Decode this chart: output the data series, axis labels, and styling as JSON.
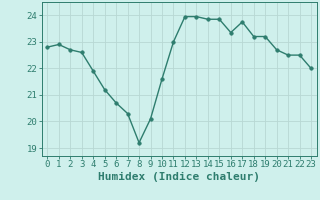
{
  "x": [
    0,
    1,
    2,
    3,
    4,
    5,
    6,
    7,
    8,
    9,
    10,
    11,
    12,
    13,
    14,
    15,
    16,
    17,
    18,
    19,
    20,
    21,
    22,
    23
  ],
  "y": [
    22.8,
    22.9,
    22.7,
    22.6,
    21.9,
    21.2,
    20.7,
    20.3,
    19.2,
    20.1,
    21.6,
    23.0,
    23.95,
    23.95,
    23.85,
    23.85,
    23.35,
    23.75,
    23.2,
    23.2,
    22.7,
    22.5,
    22.5,
    22.0
  ],
  "line_color": "#2e7d6e",
  "marker": "o",
  "marker_size": 2.5,
  "bg_color": "#cff0ec",
  "grid_color_major": "#b8d8d4",
  "grid_color_minor": "#b8d8d4",
  "xlabel": "Humidex (Indice chaleur)",
  "ylim": [
    18.7,
    24.5
  ],
  "xlim": [
    -0.5,
    23.5
  ],
  "yticks": [
    19,
    20,
    21,
    22,
    23,
    24
  ],
  "xticks": [
    0,
    1,
    2,
    3,
    4,
    5,
    6,
    7,
    8,
    9,
    10,
    11,
    12,
    13,
    14,
    15,
    16,
    17,
    18,
    19,
    20,
    21,
    22,
    23
  ],
  "tick_label_fontsize": 6.5,
  "xlabel_fontsize": 8,
  "axis_color": "#2e7d6e",
  "line_width": 1.0,
  "spine_color": "#2e7d6e"
}
